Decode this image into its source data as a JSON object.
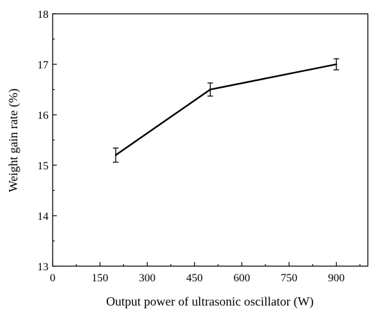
{
  "chart_data": {
    "type": "line",
    "title": "",
    "xlabel": "Output power of ultrasonic oscillator (W)",
    "ylabel": "Weight gain rate (%)",
    "xlim": [
      0,
      1000
    ],
    "ylim": [
      13,
      18
    ],
    "x_major_ticks": [
      0,
      150,
      300,
      450,
      600,
      750,
      900
    ],
    "x_minor_ticks": [
      75,
      225,
      375,
      525,
      675,
      825,
      975
    ],
    "y_major_ticks": [
      13,
      14,
      15,
      16,
      17,
      18
    ],
    "y_minor_ticks": [
      13.5,
      14.5,
      15.5,
      16.5,
      17.5
    ],
    "x_tick_labels": [
      "0",
      "150",
      "300",
      "450",
      "600",
      "750",
      "900"
    ],
    "y_tick_labels": [
      "13",
      "14",
      "15",
      "16",
      "17",
      "18"
    ],
    "grid": false,
    "legend": "none",
    "line_color": "#000000",
    "series": [
      {
        "x": [
          200,
          500,
          900
        ],
        "y": [
          15.2,
          16.5,
          17.0
        ],
        "error": [
          0.14,
          0.13,
          0.11
        ]
      }
    ]
  }
}
